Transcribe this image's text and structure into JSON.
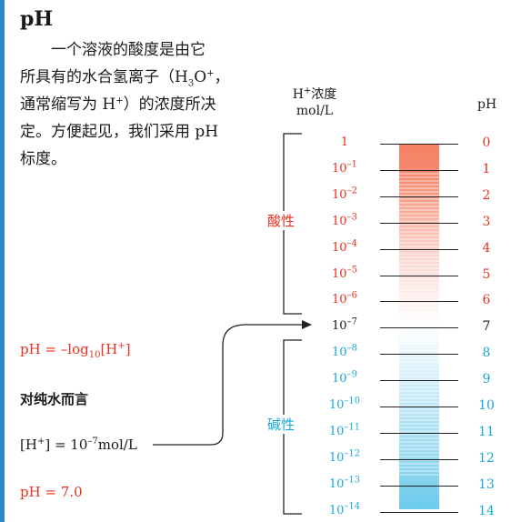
{
  "title": "pH",
  "paragraph": {
    "l1": "一个溶液的酸度是由它",
    "l2a": "所具有的水合氢离子（H",
    "l2b": "3",
    "l2c": "O",
    "l2d": "+",
    "l2e": "，",
    "l3a": "通常缩写为 H",
    "l3b": "+",
    "l3c": "）的浓度所决",
    "l4": "定。方便起见，我们采用 pH",
    "l5": "标度。"
  },
  "formula": {
    "a": "pH = –log",
    "b": "10",
    "c": "[H",
    "d": "+",
    "e": "]"
  },
  "pure_water_label": "对纯水而言",
  "h_conc": {
    "a": "[H",
    "b": "+",
    "c": "] = 10",
    "d": "–7",
    "e": "mol/L"
  },
  "ph_result": "pH = 7.0",
  "header": {
    "conc_a": "H",
    "conc_b": "+",
    "conc_c": "浓度",
    "conc_unit": "mol/L",
    "ph": "pH"
  },
  "acid_label": "酸性",
  "base_label": "碱性",
  "rows": [
    {
      "base": "1",
      "exp": "",
      "ph": "0"
    },
    {
      "base": "10",
      "exp": "–1",
      "ph": "1"
    },
    {
      "base": "10",
      "exp": "–2",
      "ph": "2"
    },
    {
      "base": "10",
      "exp": "–3",
      "ph": "3"
    },
    {
      "base": "10",
      "exp": "–4",
      "ph": "4"
    },
    {
      "base": "10",
      "exp": "–5",
      "ph": "5"
    },
    {
      "base": "10",
      "exp": "–6",
      "ph": "6"
    },
    {
      "base": "10",
      "exp": "–7",
      "ph": "7"
    },
    {
      "base": "10",
      "exp": "–8",
      "ph": "8"
    },
    {
      "base": "10",
      "exp": "–9",
      "ph": "9"
    },
    {
      "base": "10",
      "exp": "–10",
      "ph": "10"
    },
    {
      "base": "10",
      "exp": "–11",
      "ph": "11"
    },
    {
      "base": "10",
      "exp": "–12",
      "ph": "12"
    },
    {
      "base": "10",
      "exp": "–13",
      "ph": "13"
    },
    {
      "base": "10",
      "exp": "–14",
      "ph": "14"
    }
  ],
  "colors": {
    "accent": "#2e86c8",
    "acid": "#e8301e",
    "base": "#19a7d8",
    "neutral": "#1a1a1a"
  }
}
